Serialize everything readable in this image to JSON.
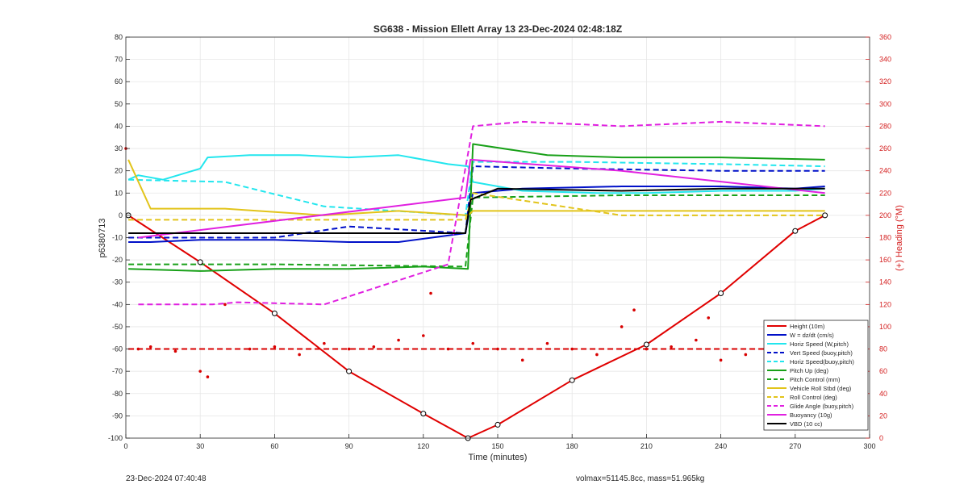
{
  "footer": {
    "timestamp": "23-Dec-2024 07:40:48",
    "volmax_mass": "volmax=51145.8cc, mass=51.965kg"
  },
  "colors": {
    "height": "#e00000",
    "w": "#0010c8",
    "cyan": "#22e6ee",
    "green": "#18a018",
    "yellow": "#e2c41a",
    "magenta": "#e020e0",
    "black": "#000000",
    "axis_right": "#d42020",
    "heading": "#d80000"
  },
  "chart_data": {
    "type": "line",
    "title": "SG638 - Mission Ellett Array 13 23-Dec-2024 02:48:18Z",
    "xlabel": "Time (minutes)",
    "ylabel_left": "p6380713",
    "ylabel_right": "(+) Heading (°M)",
    "xlim": [
      0,
      300
    ],
    "ylim_left": [
      -100,
      80
    ],
    "ylim_right": [
      0,
      360
    ],
    "xticks": [
      0,
      30,
      60,
      90,
      120,
      150,
      180,
      210,
      240,
      270,
      300
    ],
    "yticks_left": [
      -100,
      -90,
      -80,
      -70,
      -60,
      -50,
      -40,
      -30,
      -20,
      -10,
      0,
      10,
      20,
      30,
      40,
      50,
      60,
      70,
      80
    ],
    "yticks_right": [
      0,
      20,
      40,
      60,
      80,
      100,
      120,
      140,
      160,
      180,
      200,
      220,
      240,
      260,
      280,
      300,
      320,
      340,
      360
    ],
    "grid": true,
    "legend_position": "lower-right",
    "series": [
      {
        "name": "Height (10m)",
        "style": "solid",
        "color": "#e00000",
        "x": [
          1,
          30,
          60,
          90,
          120,
          138,
          150,
          180,
          210,
          240,
          270,
          282
        ],
        "y": [
          0,
          -21,
          -44,
          -70,
          -89,
          -100,
          -94,
          -74,
          -58,
          -35,
          -7,
          0
        ]
      },
      {
        "name": "W = dz/dt (cm/s)",
        "style": "solid",
        "color": "#0010c8",
        "x": [
          1,
          10,
          30,
          60,
          90,
          110,
          137,
          139,
          140,
          150,
          160,
          200,
          240,
          270,
          282
        ],
        "y": [
          -12,
          -12,
          -11,
          -11,
          -12,
          -12,
          -8,
          5,
          10,
          11,
          12,
          13,
          13,
          12,
          13
        ]
      },
      {
        "name": "Horiz Speed (W,pitch)",
        "style": "solid",
        "color": "#22e6ee",
        "x": [
          1,
          5,
          15,
          30,
          33,
          50,
          70,
          90,
          110,
          130,
          138,
          140,
          160,
          190,
          210,
          240,
          270,
          282
        ],
        "y": [
          16,
          18,
          16,
          21,
          26,
          27,
          27,
          26,
          27,
          23,
          22,
          15,
          11,
          10,
          10,
          11,
          11,
          12
        ]
      },
      {
        "name": "Vert Speed (buoy,pitch)",
        "style": "dashed",
        "color": "#0010c8",
        "x": [
          1,
          60,
          90,
          137,
          140,
          180,
          240,
          282
        ],
        "y": [
          -10,
          -10,
          -5,
          -8,
          22,
          21,
          20,
          20
        ]
      },
      {
        "name": "Horiz Speed(buoy,pitch)",
        "style": "dashed",
        "color": "#22e6ee",
        "x": [
          1,
          40,
          80,
          137,
          140,
          180,
          240,
          282
        ],
        "y": [
          16,
          15,
          4,
          0,
          24,
          24,
          23,
          22
        ]
      },
      {
        "name": "Pitch Up (deg)",
        "style": "solid",
        "color": "#18a018",
        "x": [
          1,
          30,
          60,
          90,
          120,
          138,
          140,
          170,
          200,
          240,
          282
        ],
        "y": [
          -24,
          -25,
          -24,
          -24,
          -23,
          -24,
          32,
          27,
          26,
          26,
          25
        ]
      },
      {
        "name": "Pitch Control (mm)",
        "style": "dashed",
        "color": "#18a018",
        "x": [
          1,
          60,
          137,
          140,
          200,
          282
        ],
        "y": [
          -22,
          -22,
          -23,
          8,
          9,
          9
        ]
      },
      {
        "name": "Vehicle Roll Stbd (deg)",
        "style": "solid",
        "color": "#e2c41a",
        "x": [
          1,
          10,
          40,
          80,
          110,
          138,
          140,
          170,
          210,
          250,
          282
        ],
        "y": [
          25,
          3,
          3,
          0,
          2,
          0,
          2,
          2,
          2,
          2,
          2
        ]
      },
      {
        "name": "Roll Control (deg)",
        "style": "dashed",
        "color": "#e2c41a",
        "x": [
          1,
          40,
          80,
          137,
          140,
          200,
          282
        ],
        "y": [
          -2,
          -2,
          -2,
          -2,
          10,
          0,
          0
        ]
      },
      {
        "name": "Glide Angle (buoy,pitch)",
        "style": "dashed",
        "color": "#e020e0",
        "x": [
          5,
          35,
          45,
          80,
          130,
          140,
          160,
          200,
          240,
          282
        ],
        "y": [
          -40,
          -40,
          -39,
          -40,
          -22,
          40,
          42,
          40,
          42,
          40
        ]
      },
      {
        "name": "Buoyancy (10g)",
        "style": "solid",
        "color": "#e020e0",
        "x": [
          5,
          137,
          139,
          200,
          282
        ],
        "y": [
          -10,
          8,
          25,
          20,
          10
        ]
      },
      {
        "name": "VBD (10 cc)",
        "style": "solid",
        "color": "#000000",
        "x": [
          1,
          137,
          139,
          150,
          200,
          240,
          282
        ],
        "y": [
          -8,
          -8,
          7,
          12,
          11,
          12,
          12
        ]
      }
    ],
    "heading": {
      "name": "Heading (°M)",
      "axis": "right",
      "style": "dotted",
      "color": "#d80000",
      "x": [
        0,
        5,
        10,
        20,
        30,
        33,
        40,
        50,
        60,
        70,
        80,
        90,
        100,
        110,
        120,
        123,
        130,
        140,
        150,
        160,
        170,
        180,
        190,
        200,
        205,
        210,
        220,
        230,
        235,
        240,
        250,
        260,
        270,
        282
      ],
      "y": [
        260,
        80,
        82,
        78,
        60,
        55,
        120,
        80,
        82,
        75,
        85,
        80,
        82,
        88,
        92,
        130,
        80,
        85,
        80,
        70,
        85,
        80,
        75,
        100,
        115,
        80,
        82,
        88,
        108,
        70,
        75,
        80,
        82,
        80
      ],
      "control_value": 80
    }
  }
}
